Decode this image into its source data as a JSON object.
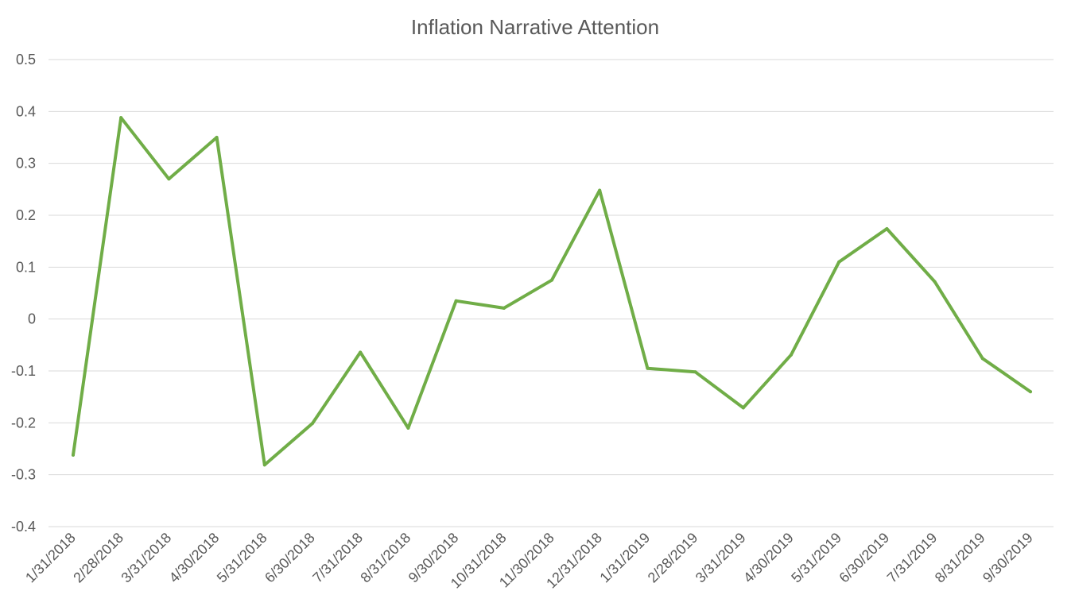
{
  "chart_data": {
    "type": "line",
    "title": "Inflation Narrative Attention",
    "xlabel": "",
    "ylabel": "",
    "ylim": [
      -0.4,
      0.5
    ],
    "yticks": [
      {
        "value": 0.5,
        "label": "0.5"
      },
      {
        "value": 0.4,
        "label": "0.4"
      },
      {
        "value": 0.3,
        "label": "0.3"
      },
      {
        "value": 0.2,
        "label": "0.2"
      },
      {
        "value": 0.1,
        "label": "0.1"
      },
      {
        "value": 0.0,
        "label": "0"
      },
      {
        "value": -0.1,
        "label": "-0.1"
      },
      {
        "value": -0.2,
        "label": "-0.2"
      },
      {
        "value": -0.3,
        "label": "-0.3"
      },
      {
        "value": -0.4,
        "label": "-0.4"
      }
    ],
    "categories": [
      "1/31/2018",
      "2/28/2018",
      "3/31/2018",
      "4/30/2018",
      "5/31/2018",
      "6/30/2018",
      "7/31/2018",
      "8/31/2018",
      "9/30/2018",
      "10/31/2018",
      "11/30/2018",
      "12/31/2018",
      "1/31/2019",
      "2/28/2019",
      "3/31/2019",
      "4/30/2019",
      "5/31/2019",
      "6/30/2019",
      "7/31/2019",
      "8/31/2019",
      "9/30/2019"
    ],
    "grid": true,
    "legend": "none",
    "series": [
      {
        "color": "#70ad47",
        "values": [
          -0.262,
          0.388,
          0.27,
          0.35,
          -0.281,
          -0.201,
          -0.064,
          -0.21,
          0.035,
          0.021,
          0.075,
          0.248,
          -0.095,
          -0.102,
          -0.171,
          -0.069,
          0.11,
          0.174,
          0.072,
          -0.076,
          -0.14
        ]
      }
    ]
  }
}
